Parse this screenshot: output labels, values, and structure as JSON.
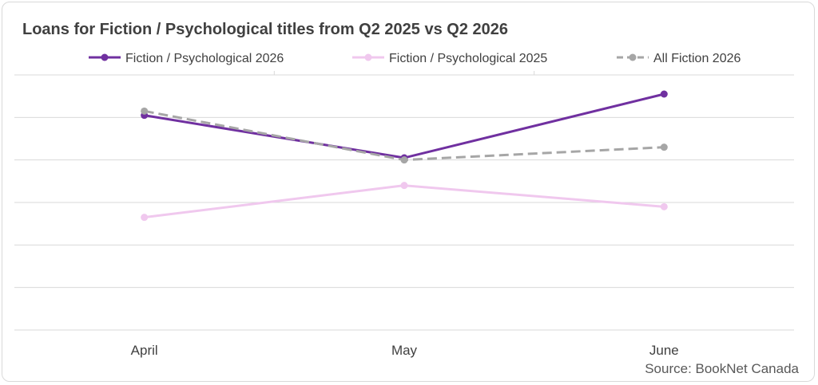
{
  "chart_data": {
    "type": "line",
    "title": "Loans for Fiction / Psychological titles from Q2 2025 vs Q2 2026",
    "source": "Source: BookNet Canada",
    "categories": [
      "April",
      "May",
      "June"
    ],
    "ylim": [
      0,
      6
    ],
    "grid": true,
    "legend": "top",
    "series": [
      {
        "name": "Fiction / Psychological 2026",
        "values": [
          5.05,
          4.05,
          5.55
        ],
        "color": "#7030a0",
        "dash": "solid"
      },
      {
        "name": "Fiction / Psychological 2025",
        "values": [
          2.65,
          3.4,
          2.9
        ],
        "color": "#f0c8ee",
        "dash": "solid"
      },
      {
        "name": "All Fiction 2026",
        "values": [
          5.15,
          4.0,
          4.3
        ],
        "color": "#a6a6a6",
        "dash": "dashed"
      }
    ]
  }
}
